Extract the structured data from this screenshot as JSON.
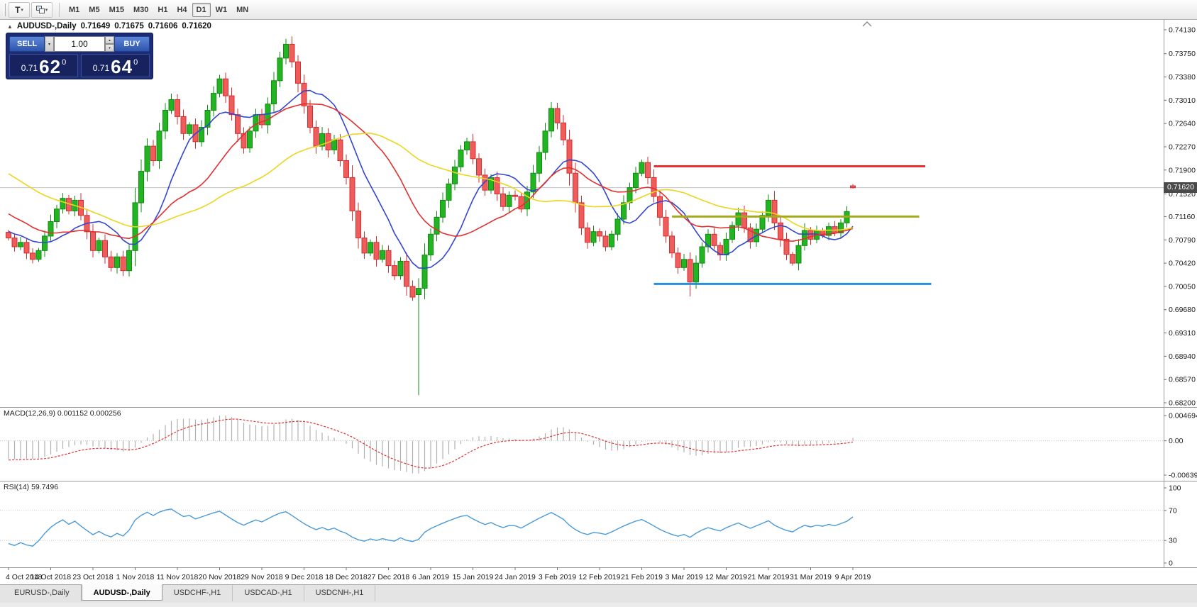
{
  "toolbar": {
    "tool1_glyph": "T",
    "timeframes": [
      {
        "label": "M1"
      },
      {
        "label": "M5"
      },
      {
        "label": "M15"
      },
      {
        "label": "M30"
      },
      {
        "label": "H1"
      },
      {
        "label": "H4"
      },
      {
        "label": "D1",
        "active": true
      },
      {
        "label": "W1"
      },
      {
        "label": "MN"
      }
    ]
  },
  "chart": {
    "title": {
      "symbol": "AUDUSD-,Daily",
      "open": "0.71649",
      "high": "0.71675",
      "low": "0.71606",
      "close": "0.71620"
    },
    "one_click": {
      "sell_label": "SELL",
      "buy_label": "BUY",
      "volume": "1.00",
      "sell_price": {
        "prefix": "0.71",
        "big": "62",
        "sup": "0"
      },
      "buy_price": {
        "prefix": "0.71",
        "big": "64",
        "sup": "0"
      }
    },
    "price_axis": {
      "labels": [
        "0.74130",
        "0.73750",
        "0.73380",
        "0.73010",
        "0.72640",
        "0.72270",
        "0.71900",
        "0.71520",
        "0.71160",
        "0.70790",
        "0.70420",
        "0.70050",
        "0.69680",
        "0.69310",
        "0.68940",
        "0.68570",
        "0.68200"
      ],
      "current": "0.71620"
    },
    "time_axis": {
      "labels": [
        "4 Oct 2018",
        "14 Oct 2018",
        "23 Oct 2018",
        "1 Nov 2018",
        "11 Nov 2018",
        "20 Nov 2018",
        "29 Nov 2018",
        "9 Dec 2018",
        "18 Dec 2018",
        "27 Dec 2018",
        "6 Jan 2019",
        "15 Jan 2019",
        "24 Jan 2019",
        "3 Feb 2019",
        "12 Feb 2019",
        "21 Feb 2019",
        "3 Mar 2019",
        "12 Mar 2019",
        "21 Mar 2019",
        "31 Mar 2019",
        "9 Apr 2019"
      ]
    }
  },
  "indicators": {
    "macd": {
      "label": "MACD(12,26,9) 0.001152 0.000256",
      "axis": [
        {
          "text": "0.004694",
          "value": 0.004694
        },
        {
          "text": "0.00",
          "value": 0
        },
        {
          "text": "-0.00639",
          "value": -0.00639
        }
      ]
    },
    "rsi": {
      "label": "RSI(14) 59.7496",
      "axis": [
        {
          "text": "100",
          "value": 100
        },
        {
          "text": "70",
          "value": 70
        },
        {
          "text": "30",
          "value": 30
        },
        {
          "text": "0",
          "value": 0
        }
      ],
      "levels": [
        70,
        30
      ]
    }
  },
  "bottom_tabs": [
    {
      "label": "EURUSD-,Daily"
    },
    {
      "label": "AUDUSD-,Daily",
      "active": true
    },
    {
      "label": "USDCHF-,H1"
    },
    {
      "label": "USDCAD-,H1"
    },
    {
      "label": "USDCNH-,H1"
    }
  ],
  "colors": {
    "up_candle": "#22b422",
    "up_border": "#0e8c0e",
    "down_candle": "#ee5c5c",
    "down_border": "#d32f2f",
    "ma_fast": "#3346d3",
    "ma_mid": "#e22f2f",
    "ma_slow": "#ecd51e",
    "hline_red": "#e83030",
    "hline_olive": "#a3ab1b",
    "hline_blue": "#2a8fd8",
    "macd_hist": "#b0b0b0",
    "macd_signal": "#e03030",
    "rsi_line": "#4a9ad8",
    "bid_line": "#c2c2c2",
    "price_tag_bg": "#4a4a4a"
  },
  "chart_data": {
    "type": "candlestick",
    "symbol": "AUDUSD-,Daily",
    "timeframe": "Daily",
    "current_price": 0.7162,
    "price_axis_range": {
      "top": 0.7413,
      "bottom": 0.682
    },
    "x_label_every": 7,
    "rsi_period": 14,
    "macd_params": {
      "fast": 12,
      "slow": 26,
      "signal": 9
    },
    "closes": [
      0.7082,
      0.7068,
      0.7075,
      0.7058,
      0.7048,
      0.7062,
      0.7085,
      0.7108,
      0.7128,
      0.7145,
      0.7125,
      0.7142,
      0.7118,
      0.7092,
      0.7062,
      0.7078,
      0.7052,
      0.7035,
      0.7052,
      0.703,
      0.7062,
      0.7138,
      0.7188,
      0.7228,
      0.7205,
      0.7252,
      0.7285,
      0.7302,
      0.7275,
      0.7248,
      0.7262,
      0.7235,
      0.7258,
      0.7285,
      0.7312,
      0.7335,
      0.7308,
      0.7278,
      0.7248,
      0.7225,
      0.7252,
      0.7278,
      0.7262,
      0.7295,
      0.7332,
      0.7368,
      0.739,
      0.7362,
      0.7328,
      0.7292,
      0.7258,
      0.7228,
      0.7248,
      0.7222,
      0.7238,
      0.7205,
      0.7178,
      0.7125,
      0.7082,
      0.7058,
      0.7075,
      0.7048,
      0.7062,
      0.7038,
      0.7022,
      0.7045,
      0.7005,
      0.6988,
      0.7002,
      0.7055,
      0.7088,
      0.7115,
      0.7142,
      0.7168,
      0.7195,
      0.7222,
      0.7235,
      0.7208,
      0.7182,
      0.7158,
      0.7178,
      0.7152,
      0.7132,
      0.715,
      0.7148,
      0.7128,
      0.7155,
      0.7185,
      0.7218,
      0.7252,
      0.7288,
      0.7265,
      0.7238,
      0.7185,
      0.7138,
      0.7098,
      0.7075,
      0.7092,
      0.7085,
      0.7068,
      0.7088,
      0.7112,
      0.7138,
      0.7162,
      0.7185,
      0.7202,
      0.7178,
      0.7148,
      0.7115,
      0.7085,
      0.7058,
      0.7035,
      0.7048,
      0.7012,
      0.7042,
      0.7068,
      0.7088,
      0.707,
      0.7055,
      0.708,
      0.7102,
      0.7122,
      0.7098,
      0.7076,
      0.7096,
      0.7118,
      0.7142,
      0.7106,
      0.708,
      0.7056,
      0.7042,
      0.707,
      0.7094,
      0.708,
      0.7094,
      0.7086,
      0.71,
      0.709,
      0.7106,
      0.7124,
      0.7162
    ],
    "special_bars": {
      "68": {
        "o": 0.6992,
        "h": 0.7018,
        "l": 0.6832,
        "c": 0.7002
      },
      "113": {
        "l": 0.6989
      },
      "140": {
        "o": 0.71649,
        "h": 0.71675,
        "l": 0.71606,
        "c": 0.7162
      }
    },
    "ma_seed": [
      0.732,
      0.7308,
      0.7315,
      0.7298,
      0.7285,
      0.7292,
      0.7278,
      0.7265,
      0.7272,
      0.7258,
      0.7245,
      0.7252,
      0.7238,
      0.7225,
      0.7232,
      0.7218,
      0.7205,
      0.7212,
      0.7198,
      0.7185,
      0.7178,
      0.7185,
      0.717,
      0.7158,
      0.7165,
      0.715,
      0.7138,
      0.7145,
      0.713,
      0.7118,
      0.7125,
      0.711,
      0.7098,
      0.7105,
      0.7092,
      0.708,
      0.7088,
      0.7095,
      0.7085,
      0.709
    ],
    "moving_averages": [
      {
        "period": 10,
        "color_key": "ma_fast"
      },
      {
        "period": 20,
        "color_key": "ma_mid"
      },
      {
        "period": 40,
        "color_key": "ma_slow"
      }
    ],
    "hlines": [
      {
        "color_key": "hline_red",
        "price": 0.7196,
        "from_bar": 107,
        "to_bar": 152,
        "width": 3
      },
      {
        "color_key": "hline_olive",
        "price": 0.7116,
        "from_bar": 110,
        "to_bar": 151,
        "width": 3
      },
      {
        "color_key": "hline_blue",
        "price": 0.7009,
        "from_bar": 107,
        "to_bar": 153,
        "width": 3
      }
    ]
  }
}
